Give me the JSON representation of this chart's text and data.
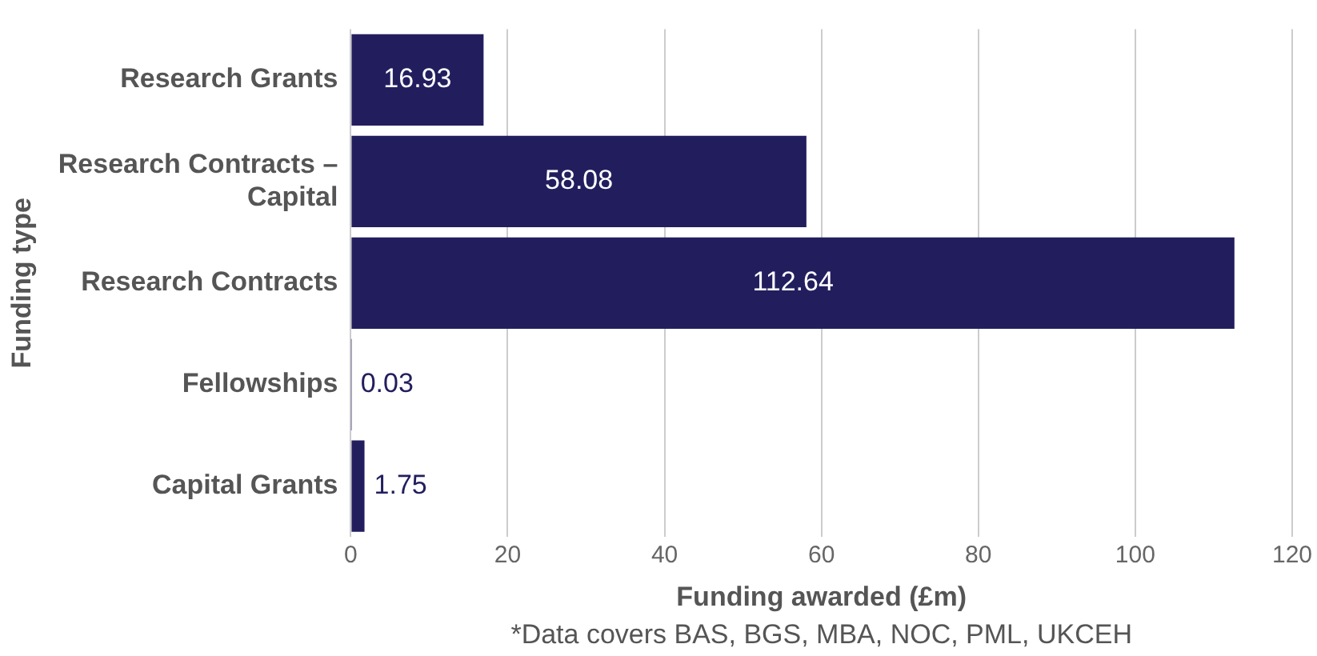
{
  "chart_data": {
    "type": "bar",
    "orientation": "horizontal",
    "ylabel": "Funding type",
    "xlabel": "Funding awarded (£m)",
    "categories": [
      "Research Grants",
      "Research Contracts – Capital",
      "Research Contracts",
      "Fellowships",
      "Capital Grants"
    ],
    "values": [
      16.93,
      58.08,
      112.64,
      0.03,
      1.75
    ],
    "color": "#221e5e",
    "xlim": [
      0,
      120
    ],
    "xticks": [
      0,
      20,
      40,
      60,
      80,
      100,
      120
    ],
    "grid": "x",
    "data_labels": true,
    "annotations": [
      "*Data covers BAS, BGS, MBA, NOC, PML, UKCEH"
    ]
  }
}
